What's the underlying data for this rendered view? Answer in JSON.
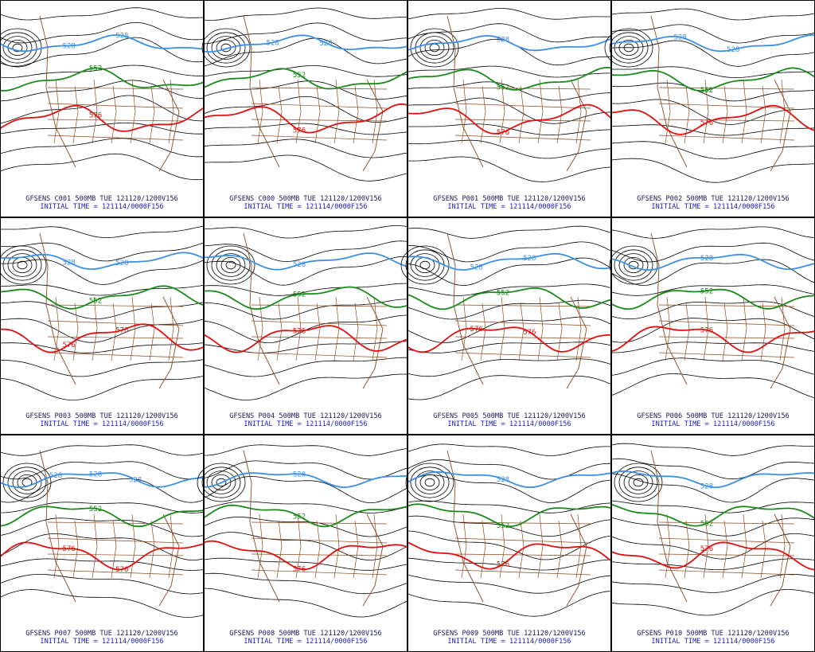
{
  "panels": [
    {
      "run": "GFSENS C001 500MB TUE 121120/1200V156",
      "init": "INITIAL TIME = 121114/0000F156",
      "contour_labels": [
        {
          "text": "528",
          "color": "#3b8fe6"
        },
        {
          "text": "528",
          "color": "#3b8fe6"
        },
        {
          "text": "552",
          "color": "#1a8a1a"
        },
        {
          "text": "576",
          "color": "#e01010"
        }
      ]
    },
    {
      "run": "GFSENS C000 500MB TUE 121120/1200V156",
      "init": "INITIAL TIME = 121114/0000F156",
      "contour_labels": [
        {
          "text": "528",
          "color": "#3b8fe6"
        },
        {
          "text": "528",
          "color": "#3b8fe6"
        },
        {
          "text": "552",
          "color": "#1a8a1a"
        },
        {
          "text": "576",
          "color": "#e01010"
        }
      ]
    },
    {
      "run": "GFSENS P001 500MB TUE 121120/1200V156",
      "init": "INITIAL TIME = 121114/0000F156",
      "contour_labels": [
        {
          "text": "528",
          "color": "#3b8fe6"
        },
        {
          "text": "552",
          "color": "#1a8a1a"
        },
        {
          "text": "576",
          "color": "#e01010"
        }
      ]
    },
    {
      "run": "GFSENS P002 500MB TUE 121120/1200V156",
      "init": "INITIAL TIME = 121114/0000F156",
      "contour_labels": [
        {
          "text": "528",
          "color": "#3b8fe6"
        },
        {
          "text": "528",
          "color": "#3b8fe6"
        },
        {
          "text": "552",
          "color": "#1a8a1a"
        },
        {
          "text": "576",
          "color": "#e01010"
        }
      ]
    },
    {
      "run": "GFSENS P003 500MB TUE 121120/1200V156",
      "init": "INITIAL TIME = 121114/0000F156",
      "contour_labels": [
        {
          "text": "528",
          "color": "#3b8fe6"
        },
        {
          "text": "528",
          "color": "#3b8fe6"
        },
        {
          "text": "552",
          "color": "#1a8a1a"
        },
        {
          "text": "576",
          "color": "#e01010"
        },
        {
          "text": "576",
          "color": "#e01010"
        }
      ]
    },
    {
      "run": "GFSENS P004 500MB TUE 121120/1200V156",
      "init": "INITIAL TIME = 121114/0000F156",
      "contour_labels": [
        {
          "text": "528",
          "color": "#3b8fe6"
        },
        {
          "text": "552",
          "color": "#1a8a1a"
        },
        {
          "text": "576",
          "color": "#e01010"
        }
      ]
    },
    {
      "run": "GFSENS P005 500MB TUE 121120/1200V156",
      "init": "INITIAL TIME = 121114/0000F156",
      "contour_labels": [
        {
          "text": "528",
          "color": "#3b8fe6"
        },
        {
          "text": "528",
          "color": "#3b8fe6"
        },
        {
          "text": "552",
          "color": "#1a8a1a"
        },
        {
          "text": "576",
          "color": "#e01010"
        },
        {
          "text": "576",
          "color": "#e01010"
        }
      ]
    },
    {
      "run": "GFSENS P006 500MB TUE 121120/1200V156",
      "init": "INITIAL TIME = 121114/0000F156",
      "contour_labels": [
        {
          "text": "528",
          "color": "#3b8fe6"
        },
        {
          "text": "552",
          "color": "#1a8a1a"
        },
        {
          "text": "576",
          "color": "#e01010"
        }
      ]
    },
    {
      "run": "GFSENS P007 500MB TUE 121120/1200V156",
      "init": "INITIAL TIME = 121114/0000F156",
      "contour_labels": [
        {
          "text": "528",
          "color": "#3b8fe6"
        },
        {
          "text": "528",
          "color": "#3b8fe6"
        },
        {
          "text": "528",
          "color": "#3b8fe6"
        },
        {
          "text": "552",
          "color": "#1a8a1a"
        },
        {
          "text": "576",
          "color": "#e01010"
        },
        {
          "text": "576",
          "color": "#e01010"
        }
      ]
    },
    {
      "run": "GFSENS P008 500MB TUE 121120/1200V156",
      "init": "INITIAL TIME = 121114/0000F156",
      "contour_labels": [
        {
          "text": "528",
          "color": "#3b8fe6"
        },
        {
          "text": "552",
          "color": "#1a8a1a"
        },
        {
          "text": "576",
          "color": "#e01010"
        }
      ]
    },
    {
      "run": "GFSENS P009 500MB TUE 121120/1200V156",
      "init": "INITIAL TIME = 121114/0000F156",
      "contour_labels": [
        {
          "text": "528",
          "color": "#3b8fe6"
        },
        {
          "text": "552",
          "color": "#1a8a1a"
        },
        {
          "text": "576",
          "color": "#e01010"
        }
      ]
    },
    {
      "run": "GFSENS P010 500MB TUE 121120/1200V156",
      "init": "INITIAL TIME = 121114/0000F156",
      "contour_labels": [
        {
          "text": "528",
          "color": "#3b8fe6"
        },
        {
          "text": "552",
          "color": "#1a8a1a"
        },
        {
          "text": "576",
          "color": "#e01010"
        }
      ]
    }
  ]
}
